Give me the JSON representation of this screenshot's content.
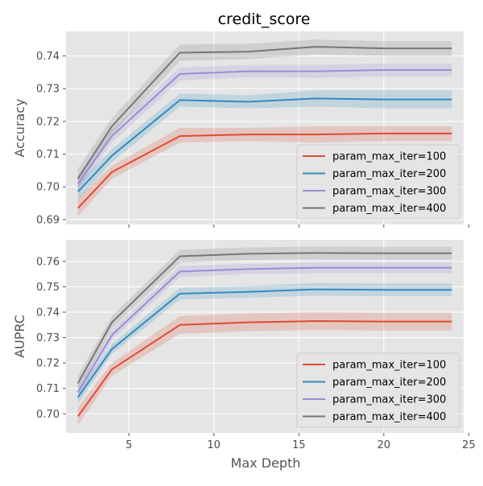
{
  "figure": {
    "title": "credit_score"
  },
  "chart_data": [
    {
      "type": "line",
      "title": "credit_score",
      "xlabel": "",
      "ylabel": "Accuracy",
      "xlim": [
        1.3,
        24.7
      ],
      "ylim": [
        0.6885,
        0.7475
      ],
      "xticks": [
        5,
        10,
        15,
        20,
        25
      ],
      "xtick_labels": [
        "",
        "",
        "",
        "",
        ""
      ],
      "yticks": [
        0.69,
        0.7,
        0.71,
        0.72,
        0.73,
        0.74
      ],
      "ytick_labels": [
        "0.69",
        "0.70",
        "0.71",
        "0.72",
        "0.73",
        "0.74"
      ],
      "grid": true,
      "legend_position": "lower-right",
      "x": [
        2,
        4,
        8,
        12,
        16,
        20,
        24
      ],
      "series": [
        {
          "name": "param_max_iter=100",
          "color": "#e24a33",
          "values": [
            0.6935,
            0.7045,
            0.7155,
            0.716,
            0.716,
            0.7163,
            0.7163
          ],
          "ci_lower": [
            0.691,
            0.7025,
            0.7135,
            0.714,
            0.7135,
            0.714,
            0.714
          ],
          "ci_upper": [
            0.6965,
            0.7065,
            0.718,
            0.718,
            0.7185,
            0.7185,
            0.7185
          ]
        },
        {
          "name": "param_max_iter=200",
          "color": "#348abd",
          "values": [
            0.6985,
            0.7095,
            0.7265,
            0.726,
            0.727,
            0.7267,
            0.7267
          ],
          "ci_lower": [
            0.696,
            0.7075,
            0.7245,
            0.724,
            0.7245,
            0.724,
            0.724
          ],
          "ci_upper": [
            0.701,
            0.7115,
            0.7285,
            0.728,
            0.7295,
            0.7295,
            0.7295
          ]
        },
        {
          "name": "param_max_iter=300",
          "color": "#988ed5",
          "values": [
            0.701,
            0.7155,
            0.7345,
            0.7353,
            0.7353,
            0.7357,
            0.7357
          ],
          "ci_lower": [
            0.6985,
            0.7135,
            0.7325,
            0.7335,
            0.7333,
            0.7337,
            0.7337
          ],
          "ci_upper": [
            0.7035,
            0.7175,
            0.7365,
            0.7372,
            0.7373,
            0.7377,
            0.7377
          ]
        },
        {
          "name": "param_max_iter=400",
          "color": "#777777",
          "values": [
            0.7025,
            0.7185,
            0.741,
            0.7413,
            0.7428,
            0.7423,
            0.7423
          ],
          "ci_lower": [
            0.6995,
            0.716,
            0.7385,
            0.739,
            0.7405,
            0.74,
            0.74
          ],
          "ci_upper": [
            0.7055,
            0.721,
            0.7435,
            0.7437,
            0.745,
            0.7445,
            0.7445
          ]
        }
      ]
    },
    {
      "type": "line",
      "title": "",
      "xlabel": "Max Depth",
      "ylabel": "AUPRC",
      "xlim": [
        1.3,
        24.7
      ],
      "ylim": [
        0.6925,
        0.7685
      ],
      "xticks": [
        5,
        10,
        15,
        20,
        25
      ],
      "xtick_labels": [
        "5",
        "10",
        "15",
        "20",
        "25"
      ],
      "yticks": [
        0.7,
        0.71,
        0.72,
        0.73,
        0.74,
        0.75,
        0.76
      ],
      "ytick_labels": [
        "0.70",
        "0.71",
        "0.72",
        "0.73",
        "0.74",
        "0.75",
        "0.76"
      ],
      "grid": true,
      "legend_position": "lower-right",
      "x": [
        2,
        4,
        8,
        12,
        16,
        20,
        24
      ],
      "series": [
        {
          "name": "param_max_iter=100",
          "color": "#e24a33",
          "values": [
            0.699,
            0.7175,
            0.735,
            0.736,
            0.7365,
            0.7363,
            0.7363
          ],
          "ci_lower": [
            0.6955,
            0.715,
            0.7315,
            0.7325,
            0.733,
            0.7328,
            0.7328
          ],
          "ci_upper": [
            0.7025,
            0.72,
            0.7385,
            0.7395,
            0.74,
            0.7398,
            0.7398
          ]
        },
        {
          "name": "param_max_iter=200",
          "color": "#348abd",
          "values": [
            0.7065,
            0.7255,
            0.7473,
            0.748,
            0.749,
            0.7488,
            0.7488
          ],
          "ci_lower": [
            0.704,
            0.7235,
            0.745,
            0.7457,
            0.7465,
            0.7463,
            0.7463
          ],
          "ci_upper": [
            0.709,
            0.7275,
            0.7496,
            0.7503,
            0.7515,
            0.7513,
            0.7513
          ]
        },
        {
          "name": "param_max_iter=300",
          "color": "#988ed5",
          "values": [
            0.7085,
            0.731,
            0.756,
            0.757,
            0.7575,
            0.7575,
            0.7575
          ],
          "ci_lower": [
            0.706,
            0.729,
            0.7538,
            0.755,
            0.7553,
            0.7553,
            0.7553
          ],
          "ci_upper": [
            0.711,
            0.733,
            0.7582,
            0.759,
            0.7597,
            0.7597,
            0.7597
          ]
        },
        {
          "name": "param_max_iter=400",
          "color": "#777777",
          "values": [
            0.712,
            0.736,
            0.762,
            0.763,
            0.7633,
            0.7632,
            0.7632
          ],
          "ci_lower": [
            0.709,
            0.7335,
            0.7595,
            0.7605,
            0.7608,
            0.7607,
            0.7607
          ],
          "ci_upper": [
            0.715,
            0.7385,
            0.7645,
            0.7655,
            0.7658,
            0.7657,
            0.7657
          ]
        }
      ]
    }
  ]
}
